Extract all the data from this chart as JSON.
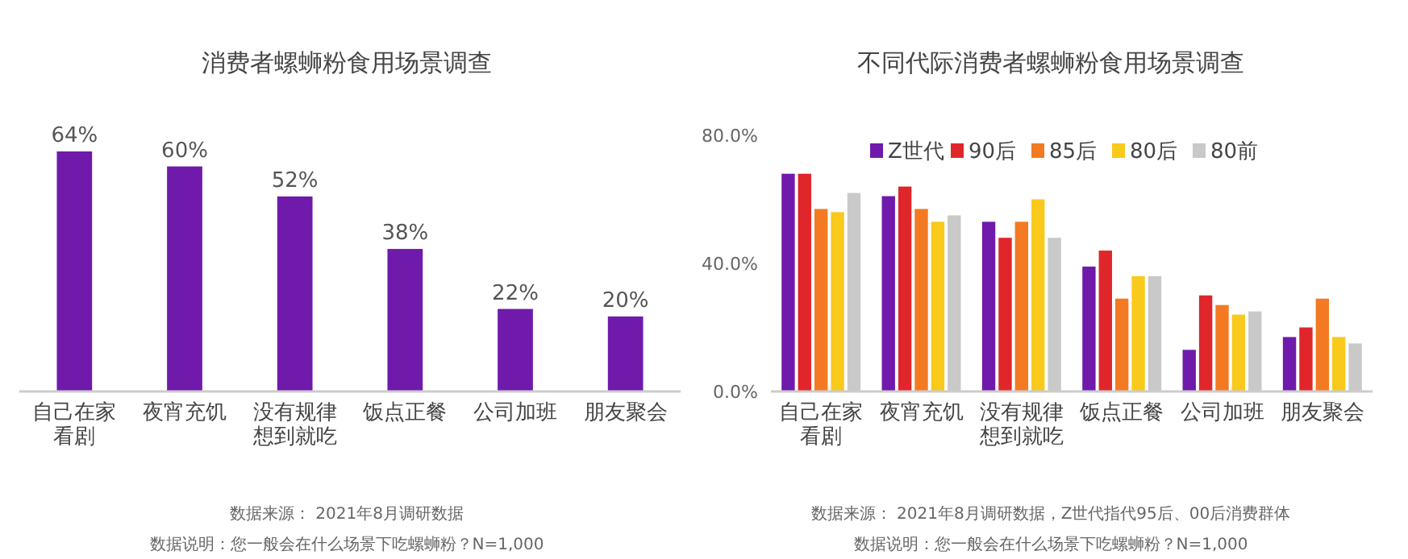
{
  "chart_data": [
    {
      "type": "bar",
      "title": "消费者螺蛳粉食用场景调查",
      "categories": [
        "自己在家看剧",
        "夜宵充饥",
        "没有规律想到就吃",
        "饭点正餐",
        "公司加班",
        "朋友聚会"
      ],
      "values": [
        64,
        60,
        52,
        38,
        22,
        20
      ],
      "value_labels": [
        "64%",
        "60%",
        "52%",
        "38%",
        "22%",
        "20%"
      ],
      "color": "#6f1aab",
      "annotations": [
        "数据来源： 2021年8月调研数据",
        "数据说明：您一般会在什么场景下吃螺蛳粉？N=1,000"
      ]
    },
    {
      "type": "bar",
      "title": "不同代际消费者螺蛳粉食用场景调查",
      "categories": [
        "自己在家看剧",
        "夜宵充饥",
        "没有规律想到就吃",
        "饭点正餐",
        "公司加班",
        "朋友聚会"
      ],
      "series": [
        {
          "name": "Z世代",
          "color": "#6f1aab",
          "values": [
            68,
            61,
            53,
            39,
            13,
            17
          ]
        },
        {
          "name": "90后",
          "color": "#e0262a",
          "values": [
            68,
            64,
            48,
            44,
            30,
            20
          ]
        },
        {
          "name": "85后",
          "color": "#f37a22",
          "values": [
            57,
            57,
            53,
            29,
            27,
            29
          ]
        },
        {
          "name": "80后",
          "color": "#f9c91b",
          "values": [
            56,
            53,
            60,
            36,
            24,
            17
          ]
        },
        {
          "name": "80前",
          "color": "#c9c9c9",
          "values": [
            62,
            55,
            48,
            36,
            25,
            15
          ]
        }
      ],
      "ylim": [
        0,
        80
      ],
      "yticks": [
        {
          "value": 0,
          "label": "0.0%"
        },
        {
          "value": 40,
          "label": "40.0%"
        },
        {
          "value": 80,
          "label": "80.0%"
        }
      ],
      "legend": "top",
      "annotations": [
        "数据来源： 2021年8月调研数据，Z世代指代95后、00后消费群体",
        "数据说明：您一般会在什么场景下吃螺蛳粉？N=1,000"
      ]
    }
  ]
}
